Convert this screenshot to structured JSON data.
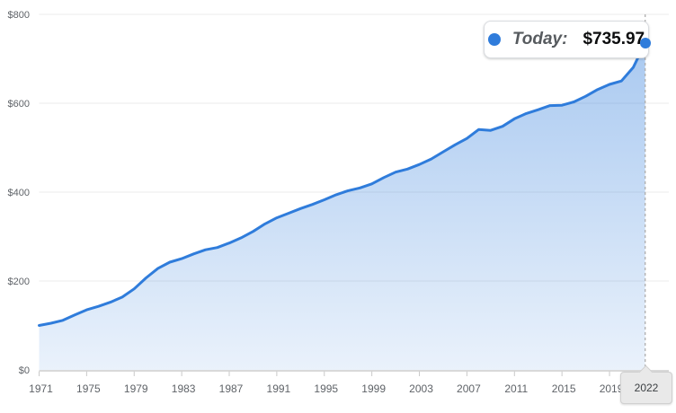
{
  "legend": {
    "label": "Today:",
    "value": "$735.97",
    "marker": "blue-dot"
  },
  "colors": {
    "line": "#2f7cdb",
    "dot": "#2f7cdb",
    "fill_top": "rgba(47,124,219,0.44)",
    "fill_bottom": "rgba(47,124,219,0.10)",
    "grid": "#ebebeb",
    "axis": "#d9d9d9",
    "tick": "#c9c9c9",
    "dashed": "#aeaeae"
  },
  "chart_data": {
    "type": "area",
    "xlabel": "",
    "ylabel": "",
    "xlim": [
      1971,
      2022
    ],
    "ylim": [
      0,
      800
    ],
    "grid": "horizontal",
    "legend_position": "top-right",
    "y_ticks": [
      0,
      200,
      400,
      600,
      800
    ],
    "y_tick_labels": [
      "$0",
      "$200",
      "$400",
      "$600",
      "$800"
    ],
    "x_tick_years": [
      1971,
      1975,
      1979,
      1983,
      1987,
      1991,
      1995,
      1999,
      2003,
      2007,
      2011,
      2015,
      2019
    ],
    "x_tick_labels": [
      "1971",
      "1975",
      "1979",
      "1983",
      "1987",
      "1991",
      "1995",
      "1999",
      "2003",
      "2007",
      "2011",
      "2015",
      "2019"
    ],
    "current_x_label": "2022",
    "current_value": 735.97,
    "x": [
      1971,
      1972,
      1973,
      1974,
      1975,
      1976,
      1977,
      1978,
      1979,
      1980,
      1981,
      1982,
      1983,
      1984,
      1985,
      1986,
      1987,
      1988,
      1989,
      1990,
      1991,
      1992,
      1993,
      1994,
      1995,
      1996,
      1997,
      1998,
      1999,
      2000,
      2001,
      2002,
      2003,
      2004,
      2005,
      2006,
      2007,
      2008,
      2009,
      2010,
      2011,
      2012,
      2013,
      2014,
      2015,
      2016,
      2017,
      2018,
      2019,
      2020,
      2021,
      2022
    ],
    "values": [
      100,
      105.0,
      111.6,
      123.9,
      135.2,
      143.0,
      152.3,
      163.8,
      182.4,
      207.0,
      228.4,
      242.5,
      250.3,
      261.1,
      270.4,
      275.4,
      285.4,
      297.2,
      311.6,
      328.4,
      342.2,
      352.5,
      363.1,
      372.4,
      382.9,
      394.2,
      403.3,
      409.5,
      418.6,
      432.7,
      445.0,
      452.0,
      462.3,
      474.6,
      490.7,
      506.5,
      520.9,
      541.0,
      539.0,
      548.0,
      565.1,
      576.9,
      585.4,
      594.7,
      595.5,
      603.0,
      615.8,
      630.9,
      642.5,
      650.2,
      680.9,
      735.97
    ]
  }
}
